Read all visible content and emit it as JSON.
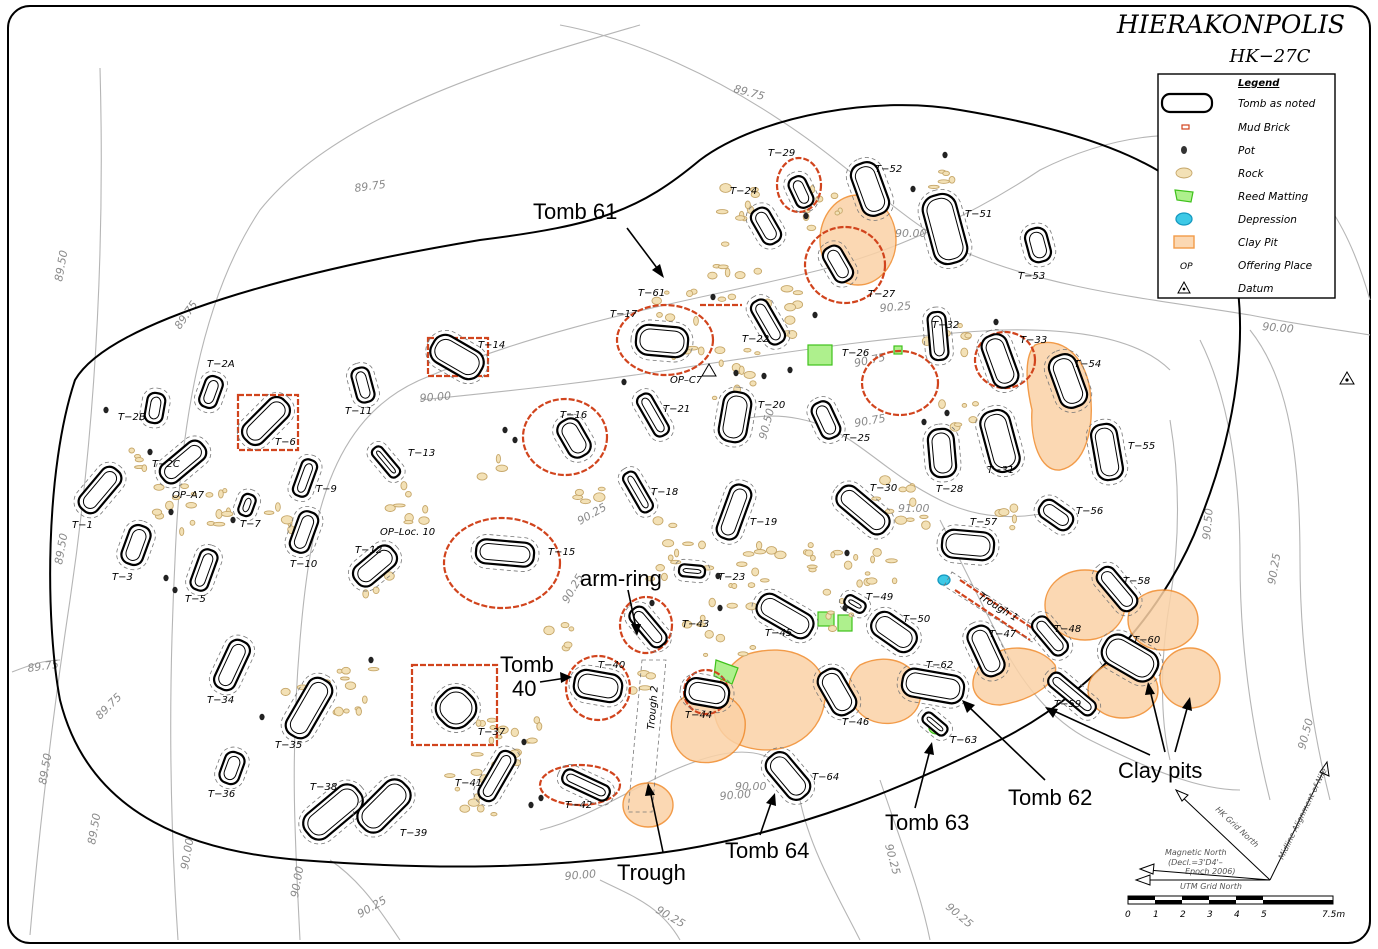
{
  "title": {
    "line1": "HIERAKONPOLIS",
    "line2": "HK−27C"
  },
  "legend": {
    "heading": "Legend",
    "items": [
      {
        "label": "Tomb as noted",
        "symbol": "tomb"
      },
      {
        "label": "Mud Brick",
        "symbol": "brick"
      },
      {
        "label": "Pot",
        "symbol": "pot"
      },
      {
        "label": "Rock",
        "symbol": "rock"
      },
      {
        "label": "Reed Matting",
        "symbol": "reed"
      },
      {
        "label": "Depression",
        "symbol": "depression"
      },
      {
        "label": "Clay Pit",
        "symbol": "clay"
      },
      {
        "label": "Offering Place",
        "symbol": "op",
        "code": "OP"
      },
      {
        "label": "Datum",
        "symbol": "datum"
      }
    ]
  },
  "colors": {
    "brick": "#d1441d",
    "clay": "#f08a2a",
    "reed": "#3fc21b",
    "depression": "#3dc9e6",
    "rock": "#c6a76a",
    "contour": "#b5b5b5"
  },
  "contour_labels": [
    "89.75",
    "89.75",
    "90.00",
    "90.25",
    "90.50",
    "90.75",
    "91.00",
    "90.00",
    "90.25",
    "90.75",
    "90.50",
    "90.25",
    "90.50",
    "90.00",
    "89.50",
    "89.75",
    "89.75",
    "89.50",
    "89.50",
    "89.50",
    "89.75",
    "90.00",
    "90.00",
    "90.25",
    "90.25",
    "90.00",
    "90.00",
    "90.25",
    "90.00",
    "90.25",
    "90.25"
  ],
  "offering_places": [
    "OP–A7",
    "OP–Loc. 10",
    "OP–C7"
  ],
  "features": [
    "Trough 1",
    "Trough 2"
  ],
  "tomb_labels": [
    "T−1",
    "T−2A",
    "T−2B",
    "T−2C",
    "T−3",
    "T−5",
    "T−6",
    "T−7",
    "T−9",
    "T−10",
    "T−11",
    "T−12",
    "T−13",
    "T−14",
    "T−15",
    "T−16",
    "T−17",
    "T−18",
    "T−19",
    "T−20",
    "T−21",
    "T−22",
    "T−23",
    "T−24",
    "T−25",
    "T−26",
    "T−27",
    "T−28",
    "T−29",
    "T−30",
    "T−31",
    "T−32",
    "T−33",
    "T−34",
    "T−35",
    "T−36",
    "T−37",
    "T−38",
    "T−39",
    "T−40",
    "T−41",
    "T−42",
    "T−43",
    "T−44",
    "T−45",
    "T−46",
    "T−47",
    "T−48",
    "T−49",
    "T−50",
    "T−51",
    "T−52",
    "T−53",
    "T−54",
    "T−55",
    "T−56",
    "T−57",
    "T−58",
    "T−59",
    "T−60",
    "T−61",
    "T−62",
    "T−63",
    "T−64"
  ],
  "annotations": {
    "tomb61": "Tomb 61",
    "armring": "arm-ring",
    "tomb40_a": "Tomb",
    "tomb40_b": "40",
    "trough": "Trough",
    "tomb64": "Tomb 64",
    "tomb63": "Tomb 63",
    "tomb62": "Tomb 62",
    "claypits": "Clay pits"
  },
  "north": {
    "hk_grid": "HK Grid North",
    "magnetic_1": "Magnetic North",
    "magnetic_2": "(Decl.=3'D4'–",
    "magnetic_3": "Epoch 2006)",
    "utm": "UTM Grid North",
    "nile": "Midline Alignment of Nile"
  },
  "scale": {
    "ticks": [
      "0",
      "1",
      "2",
      "3",
      "4",
      "5"
    ],
    "end_label": "7.5m"
  }
}
